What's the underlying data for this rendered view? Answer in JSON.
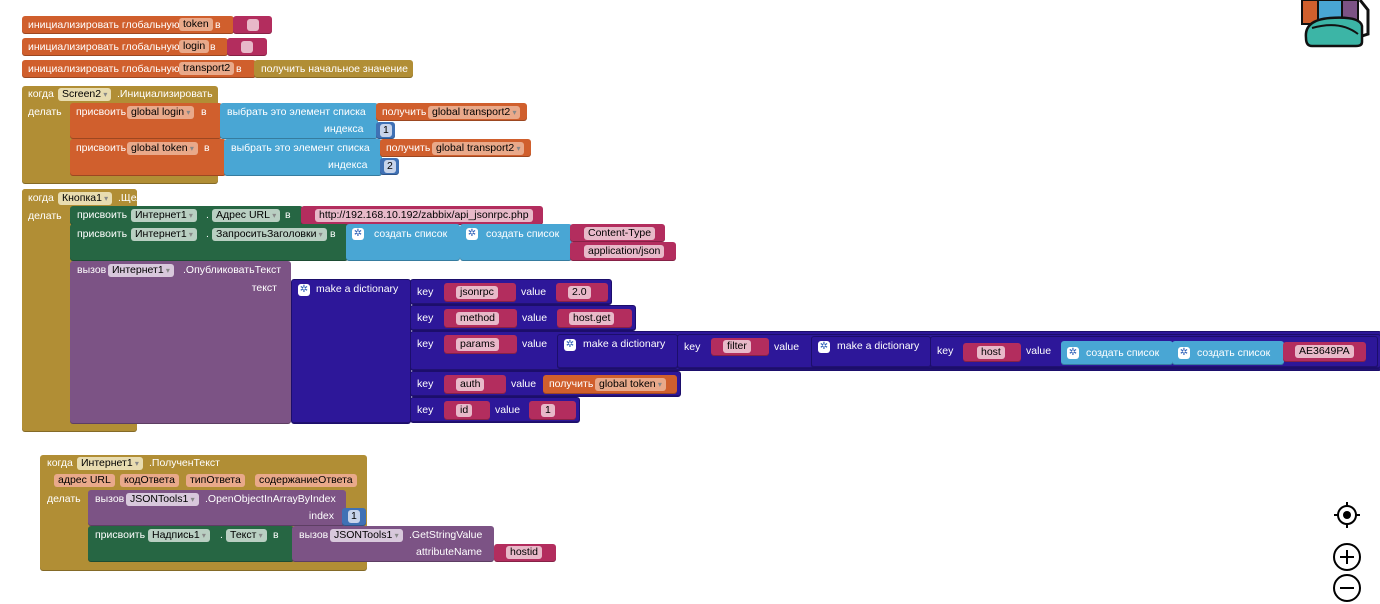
{
  "globals": [
    {
      "label": "инициализировать глобальную",
      "name": "token",
      "in": "в",
      "value": ""
    },
    {
      "label": "инициализировать глобальную",
      "name": "login",
      "in": "в",
      "value": ""
    },
    {
      "label": "инициализировать глобальную",
      "name": "transport2",
      "in": "в",
      "value": "получить начальное значение"
    }
  ],
  "screen_event": {
    "when": "когда",
    "component": "Screen2",
    "event": ".Инициализировать",
    "do": "делать",
    "sets": [
      {
        "set": "присвоить",
        "var": "global login",
        "in": "в",
        "select": "выбрать это элемент списка",
        "get": "получить",
        "get_var": "global transport2",
        "index_label": "индекса",
        "index": "1"
      },
      {
        "set": "присвоить",
        "var": "global token",
        "in": "в",
        "select": "выбрать это элемент списка",
        "get": "получить",
        "get_var": "global transport2",
        "index_label": "индекса",
        "index": "2"
      }
    ]
  },
  "click_event": {
    "when": "когда",
    "component": "Кнопка1",
    "event": ".Щелчок",
    "do": "делать",
    "set_url": {
      "set": "присвоить",
      "component": "Интернет1",
      "dot": ".",
      "prop": "Адрес URL",
      "in": "в",
      "value": "http://192.168.10.192/zabbix/api_jsonrpc.php"
    },
    "set_headers": {
      "set": "присвоить",
      "component": "Интернет1",
      "dot": ".",
      "prop": "ЗапроситьЗаголовки",
      "in": "в",
      "list1": "создать список",
      "list2": "создать список",
      "item1": "Content-Type",
      "item2": "application/json"
    },
    "call": {
      "call": "вызов",
      "component": "Интернет1",
      "method": ".ОпубликоватьТекст",
      "arg": "текст",
      "dict": "make a dictionary",
      "key": "key",
      "value": "value",
      "pairs": [
        {
          "k": "jsonrpc",
          "v": "2.0"
        },
        {
          "k": "method",
          "v": "host.get"
        },
        {
          "k": "params"
        },
        {
          "k": "auth",
          "get": "получить",
          "get_var": "global token"
        },
        {
          "k": "id",
          "v": "1"
        }
      ],
      "params": {
        "dict": "make a dictionary",
        "k": "filter",
        "dict2": "make a dictionary",
        "k2": "host",
        "list1": "создать список",
        "list2": "создать список",
        "item": "AE3649PA"
      }
    }
  },
  "got_text_event": {
    "when": "когда",
    "component": "Интернет1",
    "event": ".ПолученТекст",
    "params": [
      "адрес URL",
      "кодОтвета",
      "типОтвета",
      "содержаниеОтвета"
    ],
    "do": "делать",
    "call1": {
      "call": "вызов",
      "component": "JSONTools1",
      "method": ".OpenObjectInArrayByIndex",
      "arg": "index",
      "value": "1"
    },
    "set": {
      "set": "присвоить",
      "component": "Надпись1",
      "dot": ".",
      "prop": "Текст",
      "in": "в",
      "call": "вызов",
      "component2": "JSONTools1",
      "method": ".GetStringValue",
      "arg": "attributeName",
      "value": "hostid"
    }
  },
  "icons": {
    "backpack": "backpack-icon",
    "recenter": "target-icon",
    "zoom_in": "plus-circle-icon",
    "zoom_out": "minus-circle-icon",
    "mutator": "gear-icon"
  }
}
